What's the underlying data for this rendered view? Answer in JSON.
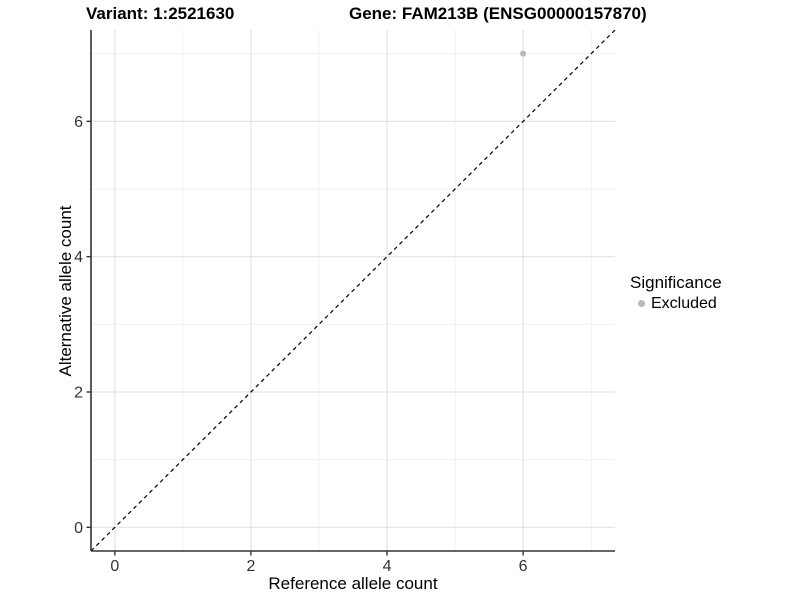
{
  "chart_data": {
    "type": "scatter",
    "title_left": "Variant: 1:2521630",
    "title_right": "Gene: FAM213B (ENSG00000157870)",
    "xlabel": "Reference allele count",
    "ylabel": "Alternative allele count",
    "xlim": [
      -0.35,
      7.35
    ],
    "ylim": [
      -0.35,
      7.35
    ],
    "x_ticks": [
      0,
      2,
      4,
      6
    ],
    "y_ticks": [
      0,
      2,
      4,
      6
    ],
    "x_minor_ticks": [
      1,
      3,
      5,
      7
    ],
    "y_minor_ticks": [
      1,
      3,
      5,
      7
    ],
    "grid": "major+minor",
    "legend_title": "Significance",
    "legend_position": "right",
    "series": [
      {
        "name": "Excluded",
        "color": "#b9b9b9",
        "marker": "circle",
        "points": [
          {
            "x": 6,
            "y": 7
          }
        ]
      }
    ],
    "reference_line": {
      "kind": "identity y=x",
      "style": "dashed",
      "color": "#000000"
    },
    "style": {
      "background": "#ffffff",
      "grid_major": "#e3e3e3",
      "grid_minor": "#f0f0f0",
      "axis_line": "#333333",
      "tick_label_color": "#333333",
      "title_color": "#000000"
    }
  }
}
